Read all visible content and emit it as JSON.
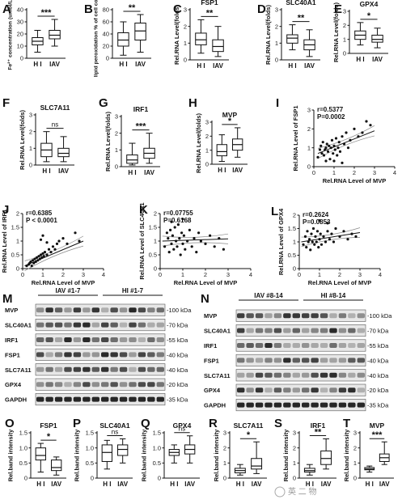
{
  "watermark": "英 二 物",
  "box_panels": [
    {
      "id": "A",
      "title": "",
      "ylabel": "Fe²⁺ concentration (umol/L)",
      "yticks": [
        "0",
        "10",
        "20",
        "30",
        "40"
      ],
      "ylim": [
        0,
        40
      ],
      "cats": [
        "H I",
        "IAV"
      ],
      "sig": "***",
      "boxes": [
        {
          "min": 5,
          "q1": 11,
          "med": 14,
          "q3": 17,
          "max": 23
        },
        {
          "min": 10,
          "q1": 16,
          "med": 19,
          "q3": 23,
          "max": 32
        }
      ]
    },
    {
      "id": "B",
      "title": "",
      "ylabel": "lipid peroxidation % of cell count",
      "yticks": [
        "0",
        "20",
        "40",
        "60",
        "80"
      ],
      "ylim": [
        0,
        80
      ],
      "cats": [
        "H I",
        "IAV"
      ],
      "sig": "**",
      "boxes": [
        {
          "min": 5,
          "q1": 20,
          "med": 30,
          "q3": 42,
          "max": 60
        },
        {
          "min": 10,
          "q1": 30,
          "med": 45,
          "q3": 58,
          "max": 72
        }
      ]
    },
    {
      "id": "C",
      "title": "FSP1",
      "ylabel": "Rel.RNA Level(folds)",
      "yticks": [
        "0",
        "1",
        "2",
        "3"
      ],
      "ylim": [
        0,
        3
      ],
      "cats": [
        "H I",
        "IAV"
      ],
      "sig": "**",
      "boxes": [
        {
          "min": 0.4,
          "q1": 0.9,
          "med": 1.2,
          "q3": 1.6,
          "max": 2.4
        },
        {
          "min": 0.2,
          "q1": 0.5,
          "med": 0.8,
          "q3": 1.2,
          "max": 2.0
        }
      ]
    },
    {
      "id": "D",
      "title": "SLC40A1",
      "ylabel": "Rel.RNA Level(folds)",
      "yticks": [
        "0",
        "1",
        "2",
        "3"
      ],
      "ylim": [
        0,
        3
      ],
      "cats": [
        "H I",
        "IAV"
      ],
      "sig": "**",
      "boxes": [
        {
          "min": 0.6,
          "q1": 1.0,
          "med": 1.3,
          "q3": 1.5,
          "max": 2.1
        },
        {
          "min": 0.2,
          "q1": 0.6,
          "med": 0.9,
          "q3": 1.2,
          "max": 1.8
        }
      ]
    },
    {
      "id": "E",
      "title": "GPX4",
      "ylabel": "Rel.RNA Level(folds)",
      "yticks": [
        "0",
        "1",
        "2",
        "3"
      ],
      "ylim": [
        0,
        3
      ],
      "cats": [
        "H I",
        "IAV"
      ],
      "sig": "*",
      "boxes": [
        {
          "min": 0.6,
          "q1": 1.0,
          "med": 1.3,
          "q3": 1.6,
          "max": 2.2
        },
        {
          "min": 0.4,
          "q1": 0.8,
          "med": 1.0,
          "q3": 1.3,
          "max": 1.8
        }
      ]
    },
    {
      "id": "F",
      "title": "SLC7A11",
      "ylabel": "Rel.RNA Level(folds)",
      "yticks": [
        "0",
        "1",
        "2",
        "3"
      ],
      "ylim": [
        0,
        3
      ],
      "cats": [
        "H I",
        "IAV"
      ],
      "sig": "ns",
      "boxes": [
        {
          "min": 0.2,
          "q1": 0.5,
          "med": 0.9,
          "q3": 1.3,
          "max": 2.0
        },
        {
          "min": 0.2,
          "q1": 0.5,
          "med": 0.7,
          "q3": 1.0,
          "max": 1.7
        }
      ]
    },
    {
      "id": "G",
      "title": "IRF1",
      "ylabel": "Rel.RNA Level(folds)",
      "yticks": [
        "0",
        "1",
        "2",
        "3"
      ],
      "ylim": [
        0,
        3
      ],
      "cats": [
        "H I",
        "IAV"
      ],
      "sig": "***",
      "boxes": [
        {
          "min": 0.1,
          "q1": 0.2,
          "med": 0.4,
          "q3": 0.7,
          "max": 1.4
        },
        {
          "min": 0.2,
          "q1": 0.5,
          "med": 0.8,
          "q3": 1.1,
          "max": 2.0
        }
      ]
    },
    {
      "id": "H",
      "title": "MVP",
      "ylabel": "Rel.RNA Level(folds)",
      "yticks": [
        "0",
        "1",
        "2",
        "3"
      ],
      "ylim": [
        0,
        3
      ],
      "cats": [
        "H I",
        "IAV"
      ],
      "sig": "*",
      "boxes": [
        {
          "min": 0.2,
          "q1": 0.6,
          "med": 0.9,
          "q3": 1.4,
          "max": 2.1
        },
        {
          "min": 0.5,
          "q1": 1.0,
          "med": 1.4,
          "q3": 1.8,
          "max": 2.6
        }
      ]
    },
    {
      "id": "O",
      "title": "FSP1",
      "ylabel": "Rel.band intensity",
      "yticks": [
        "0",
        "0.5",
        "1.0",
        "1.5"
      ],
      "ylim": [
        0,
        1.5
      ],
      "cats": [
        "H I",
        "IAV"
      ],
      "sig": "*",
      "boxes": [
        {
          "min": 0.2,
          "q1": 0.6,
          "med": 0.75,
          "q3": 1.0,
          "max": 1.15
        },
        {
          "min": 0.1,
          "q1": 0.25,
          "med": 0.35,
          "q3": 0.6,
          "max": 0.7
        }
      ]
    },
    {
      "id": "P",
      "title": "SLC40A1",
      "ylabel": "Rel.band intensity",
      "yticks": [
        "0",
        "0.5",
        "1.0",
        "1.5"
      ],
      "ylim": [
        0,
        1.5
      ],
      "cats": [
        "H I",
        "IAV"
      ],
      "sig": "ns",
      "boxes": [
        {
          "min": 0.3,
          "q1": 0.55,
          "med": 0.85,
          "q3": 1.1,
          "max": 1.25
        },
        {
          "min": 0.5,
          "q1": 0.75,
          "med": 0.95,
          "q3": 1.1,
          "max": 1.3
        }
      ]
    },
    {
      "id": "Q",
      "title": "GPX4",
      "ylabel": "Rel.band intensity",
      "yticks": [
        "0",
        "0.5",
        "1.0",
        "1.5"
      ],
      "ylim": [
        0,
        1.5
      ],
      "cats": [
        "H I",
        "IAV"
      ],
      "sig": "ns",
      "boxes": [
        {
          "min": 0.5,
          "q1": 0.75,
          "med": 0.85,
          "q3": 0.95,
          "max": 1.1
        },
        {
          "min": 0.5,
          "q1": 0.8,
          "med": 0.95,
          "q3": 1.1,
          "max": 1.4
        }
      ]
    },
    {
      "id": "R",
      "title": "SLC7A11",
      "ylabel": "Rel.band intensity",
      "yticks": [
        "0",
        "1",
        "2",
        "3"
      ],
      "ylim": [
        0,
        3
      ],
      "cats": [
        "H I",
        "IAV"
      ],
      "sig": "*",
      "boxes": [
        {
          "min": 0.2,
          "q1": 0.35,
          "med": 0.5,
          "q3": 0.65,
          "max": 0.9
        },
        {
          "min": 0.3,
          "q1": 0.6,
          "med": 0.8,
          "q3": 1.3,
          "max": 2.4
        }
      ]
    },
    {
      "id": "S",
      "title": "IRF1",
      "ylabel": "Rel.band intensity",
      "yticks": [
        "0",
        "1",
        "2",
        "3"
      ],
      "ylim": [
        0,
        3
      ],
      "cats": [
        "H I",
        "IAV"
      ],
      "sig": "**",
      "boxes": [
        {
          "min": 0.2,
          "q1": 0.4,
          "med": 0.5,
          "q3": 0.65,
          "max": 0.9
        },
        {
          "min": 0.6,
          "q1": 0.9,
          "med": 1.3,
          "q3": 1.8,
          "max": 2.6
        }
      ]
    },
    {
      "id": "T",
      "title": "MVP",
      "ylabel": "Rel.band intensity",
      "yticks": [
        "0",
        "1",
        "2",
        "3"
      ],
      "ylim": [
        0,
        3
      ],
      "cats": [
        "H I",
        "IAV"
      ],
      "sig": "***",
      "boxes": [
        {
          "min": 0.4,
          "q1": 0.55,
          "med": 0.6,
          "q3": 0.7,
          "max": 0.8
        },
        {
          "min": 0.9,
          "q1": 1.1,
          "med": 1.35,
          "q3": 1.6,
          "max": 2.4
        }
      ]
    }
  ],
  "scatter_panels": [
    {
      "id": "I",
      "ylabel": "Rel.RNA Level of FSP1",
      "xlabel": "Rel.RNA Level of MVP",
      "r": "r=0.5377",
      "p": "P=0.0002",
      "xticks": [
        "0",
        "1",
        "2",
        "3",
        "4"
      ],
      "yticks": [
        "0",
        "1",
        "2",
        "3"
      ],
      "xlim": [
        0,
        4
      ],
      "ylim": [
        0,
        3
      ],
      "fit": [
        [
          0.2,
          0.7
        ],
        [
          3.0,
          1.9
        ]
      ],
      "points": [
        [
          0.2,
          0.5
        ],
        [
          0.3,
          0.9
        ],
        [
          0.35,
          1.1
        ],
        [
          0.4,
          0.7
        ],
        [
          0.45,
          1.3
        ],
        [
          0.5,
          0.6
        ],
        [
          0.55,
          0.9
        ],
        [
          0.6,
          1.0
        ],
        [
          0.65,
          1.2
        ],
        [
          0.7,
          0.8
        ],
        [
          0.75,
          1.1
        ],
        [
          0.8,
          0.4
        ],
        [
          0.85,
          1.0
        ],
        [
          0.9,
          1.4
        ],
        [
          0.95,
          0.7
        ],
        [
          1.0,
          1.1
        ],
        [
          1.05,
          0.9
        ],
        [
          1.1,
          1.5
        ],
        [
          1.15,
          0.6
        ],
        [
          1.2,
          1.0
        ],
        [
          1.25,
          1.3
        ],
        [
          1.3,
          0.8
        ],
        [
          1.4,
          1.6
        ],
        [
          1.5,
          1.2
        ],
        [
          1.6,
          1.8
        ],
        [
          1.7,
          1.0
        ],
        [
          1.8,
          1.4
        ],
        [
          2.0,
          2.0
        ],
        [
          2.2,
          1.6
        ],
        [
          2.4,
          1.8
        ],
        [
          2.6,
          2.4
        ],
        [
          2.8,
          2.2
        ],
        [
          1.0,
          0.3
        ],
        [
          0.6,
          0.3
        ],
        [
          1.4,
          0.2
        ]
      ]
    },
    {
      "id": "J",
      "ylabel": "Rel.RNA Level of IRF1",
      "xlabel": "Rel.RNA Level of MVP",
      "r": "r=0.6385",
      "p": "P < 0.0001",
      "xticks": [
        "0",
        "1",
        "2",
        "3",
        "4"
      ],
      "yticks": [
        "0",
        "0.5",
        "1",
        "1.5",
        "2"
      ],
      "xlim": [
        0,
        4
      ],
      "ylim": [
        0,
        2
      ],
      "fit": [
        [
          0.1,
          0.1
        ],
        [
          3.0,
          1.0
        ]
      ],
      "points": [
        [
          0.2,
          0.1
        ],
        [
          0.3,
          0.15
        ],
        [
          0.35,
          0.2
        ],
        [
          0.4,
          0.25
        ],
        [
          0.45,
          0.1
        ],
        [
          0.5,
          0.3
        ],
        [
          0.55,
          0.2
        ],
        [
          0.6,
          0.35
        ],
        [
          0.65,
          0.25
        ],
        [
          0.7,
          0.4
        ],
        [
          0.75,
          0.3
        ],
        [
          0.8,
          0.45
        ],
        [
          0.85,
          0.35
        ],
        [
          0.9,
          0.5
        ],
        [
          0.95,
          0.4
        ],
        [
          1.0,
          0.55
        ],
        [
          1.05,
          0.45
        ],
        [
          1.1,
          0.6
        ],
        [
          1.2,
          0.5
        ],
        [
          1.3,
          0.7
        ],
        [
          1.4,
          0.6
        ],
        [
          1.5,
          0.8
        ],
        [
          1.6,
          0.7
        ],
        [
          1.7,
          0.9
        ],
        [
          1.8,
          1.0
        ],
        [
          2.0,
          1.1
        ],
        [
          2.2,
          0.9
        ],
        [
          2.6,
          1.3
        ],
        [
          2.8,
          1.0
        ],
        [
          1.0,
          1.2
        ],
        [
          0.9,
          1.05
        ],
        [
          1.2,
          0.95
        ]
      ]
    },
    {
      "id": "K",
      "ylabel": "Rel.RNA Level of SLC40A1",
      "xlabel": "Rel.RNA Level of MVP",
      "r": "r=0.07755",
      "p": "P=0.6168",
      "xticks": [
        "0",
        "1",
        "2",
        "3",
        "4"
      ],
      "yticks": [
        "0",
        "0.5",
        "1",
        "1.5",
        "2"
      ],
      "xlim": [
        0,
        4
      ],
      "ylim": [
        0,
        2
      ],
      "fit": [
        [
          0.1,
          1.0
        ],
        [
          3.0,
          1.08
        ]
      ],
      "points": [
        [
          0.2,
          0.8
        ],
        [
          0.3,
          1.3
        ],
        [
          0.35,
          1.1
        ],
        [
          0.4,
          0.6
        ],
        [
          0.45,
          1.4
        ],
        [
          0.5,
          0.9
        ],
        [
          0.55,
          1.2
        ],
        [
          0.6,
          0.7
        ],
        [
          0.65,
          1.5
        ],
        [
          0.7,
          1.0
        ],
        [
          0.75,
          0.8
        ],
        [
          0.8,
          1.6
        ],
        [
          0.85,
          1.1
        ],
        [
          0.9,
          0.5
        ],
        [
          0.95,
          1.3
        ],
        [
          1.0,
          0.9
        ],
        [
          1.05,
          1.2
        ],
        [
          1.1,
          0.7
        ],
        [
          1.2,
          1.0
        ],
        [
          1.3,
          1.4
        ],
        [
          1.4,
          0.8
        ],
        [
          1.5,
          1.1
        ],
        [
          1.6,
          0.6
        ],
        [
          1.7,
          1.3
        ],
        [
          1.8,
          1.0
        ],
        [
          2.0,
          0.9
        ],
        [
          2.2,
          1.2
        ],
        [
          2.4,
          0.8
        ],
        [
          2.6,
          1.1
        ],
        [
          2.8,
          0.7
        ],
        [
          1.0,
          1.8
        ],
        [
          0.5,
          1.7
        ]
      ]
    },
    {
      "id": "L",
      "ylabel": "Rel.RNA Level of GPX4",
      "xlabel": "Rel.RNA Level of MVP",
      "r": "r=0.2624",
      "p": "P=0.0853",
      "xticks": [
        "0",
        "1",
        "2",
        "3",
        "4"
      ],
      "yticks": [
        "0",
        "0.5",
        "1",
        "1.5",
        "2"
      ],
      "xlim": [
        0,
        4
      ],
      "ylim": [
        0,
        2
      ],
      "fit": [
        [
          0.1,
          1.0
        ],
        [
          3.0,
          1.35
        ]
      ],
      "points": [
        [
          0.2,
          0.9
        ],
        [
          0.3,
          1.2
        ],
        [
          0.35,
          0.8
        ],
        [
          0.4,
          1.4
        ],
        [
          0.45,
          1.0
        ],
        [
          0.5,
          1.1
        ],
        [
          0.55,
          0.7
        ],
        [
          0.6,
          1.3
        ],
        [
          0.65,
          1.0
        ],
        [
          0.7,
          1.5
        ],
        [
          0.75,
          0.9
        ],
        [
          0.8,
          1.2
        ],
        [
          0.85,
          1.0
        ],
        [
          0.9,
          1.4
        ],
        [
          0.95,
          0.8
        ],
        [
          1.0,
          1.1
        ],
        [
          1.05,
          1.3
        ],
        [
          1.1,
          0.9
        ],
        [
          1.2,
          1.2
        ],
        [
          1.3,
          1.0
        ],
        [
          1.4,
          1.4
        ],
        [
          1.5,
          1.1
        ],
        [
          1.6,
          1.3
        ],
        [
          1.7,
          1.0
        ],
        [
          1.8,
          1.5
        ],
        [
          2.0,
          1.2
        ],
        [
          2.2,
          1.4
        ],
        [
          2.4,
          1.1
        ],
        [
          2.6,
          1.3
        ],
        [
          2.8,
          1.2
        ],
        [
          1.0,
          1.8
        ],
        [
          1.4,
          1.7
        ]
      ]
    }
  ],
  "blots": [
    {
      "id": "M",
      "groups": [
        "IAV #1-7",
        "HI #1-7"
      ],
      "lanes": 14,
      "rows": [
        {
          "label": "MVP",
          "kda": "-100 kDa"
        },
        {
          "label": "SLC40A1",
          "kda": "-70 kDa"
        },
        {
          "label": "IRF1",
          "kda": "-55 kDa"
        },
        {
          "label": "FSP1",
          "kda": "-40 kDa"
        },
        {
          "label": "SLC7A11",
          "kda": "-40 kDa"
        },
        {
          "label": "GPX4",
          "kda": "-20 kDa"
        },
        {
          "label": "GAPDH",
          "kda": "-35 kDa"
        }
      ]
    },
    {
      "id": "N",
      "groups": [
        "IAV #8-14",
        "HI #8-14"
      ],
      "lanes": 14,
      "rows": [
        {
          "label": "MVP",
          "kda": "-100 kDa"
        },
        {
          "label": "SLC40A1",
          "kda": "-70 kDa"
        },
        {
          "label": "IRF1",
          "kda": "-55 kDa"
        },
        {
          "label": "FSP1",
          "kda": "-40 kDa"
        },
        {
          "label": "SLC7A11",
          "kda": "-40 kDa"
        },
        {
          "label": "GPX4",
          "kda": "-20 kDa"
        },
        {
          "label": "GAPDH",
          "kda": "-35 kDa"
        }
      ]
    }
  ]
}
